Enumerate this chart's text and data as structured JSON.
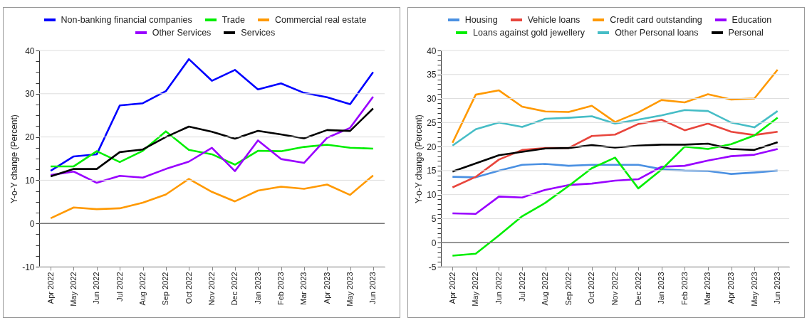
{
  "chart_data": [
    {
      "type": "line",
      "ylabel": "Y-o-Y change (Percent)",
      "legend": "top",
      "grid": "y",
      "categories": [
        "Apr 2022",
        "May 2022",
        "Jun 2022",
        "Jul 2022",
        "Aug 2022",
        "Sep 2022",
        "Oct 2022",
        "Nov 2022",
        "Dec 2022",
        "Jan 2023",
        "Feb 2023",
        "Mar 2023",
        "Apr 2023",
        "May 2023",
        "Jun 2023"
      ],
      "ylim": [
        -10,
        40
      ],
      "yticks": [
        -10,
        {
          "value": -7.5,
          "label": null
        },
        {
          "value": -5,
          "label": null
        },
        {
          "value": -2.5,
          "label": null
        },
        0,
        {
          "value": 2.5,
          "label": null
        },
        {
          "value": 5,
          "label": null
        },
        {
          "value": 7.5,
          "label": null
        },
        10,
        {
          "value": 12.5,
          "label": null
        },
        {
          "value": 15,
          "label": null
        },
        {
          "value": 17.5,
          "label": null
        },
        20,
        {
          "value": 22.5,
          "label": null
        },
        {
          "value": 25,
          "label": null
        },
        {
          "value": 27.5,
          "label": null
        },
        30,
        {
          "value": 32.5,
          "label": null
        },
        {
          "value": 35,
          "label": null
        },
        {
          "value": 37.5,
          "label": null
        },
        40
      ],
      "ref_lines": [
        {
          "axis": "y",
          "value": 0,
          "color": "#777777"
        }
      ],
      "series": [
        {
          "name": "Non-banking financial companies",
          "color": "#0000ff",
          "values": [
            12.2,
            15.5,
            16,
            27.3,
            27.8,
            30.6,
            38,
            33,
            35.5,
            31,
            32.4,
            30.2,
            29.2,
            27.6,
            35
          ]
        },
        {
          "name": "Trade",
          "color": "#00ee00",
          "values": [
            13.2,
            13.2,
            16.7,
            14.2,
            16.8,
            21.3,
            17,
            16,
            13.6,
            16.8,
            16.7,
            17.7,
            18.2,
            17.5,
            17.3
          ]
        },
        {
          "name": "Commercial real estate",
          "color": "#ff9900",
          "values": [
            1.2,
            3.7,
            3.3,
            3.5,
            4.8,
            6.7,
            10.3,
            7.3,
            5.1,
            7.6,
            8.5,
            8.0,
            9.0,
            6.6,
            11.1
          ]
        },
        {
          "name": "Other Services",
          "color": "#9900ff",
          "values": [
            11.2,
            12.0,
            9.4,
            11.0,
            10.6,
            12.6,
            14.3,
            17.5,
            12.1,
            19.2,
            14.9,
            14.0,
            19.8,
            22.1,
            29.3
          ]
        },
        {
          "name": "Services",
          "color": "#000000",
          "values": [
            10.9,
            12.6,
            12.6,
            16.5,
            17.1,
            20,
            22.4,
            21.2,
            19.6,
            21.4,
            20.6,
            19.7,
            21.6,
            21.4,
            26.6
          ]
        }
      ]
    },
    {
      "type": "line",
      "ylabel": "Y-o-Y change (Percent)",
      "legend": "top",
      "grid": "y",
      "categories": [
        "Apr 2022",
        "May 2022",
        "Jun 2022",
        "Jul 2022",
        "Aug 2022",
        "Sep 2022",
        "Oct 2022",
        "Nov 2022",
        "Dec 2022",
        "Jan 2023",
        "Feb 2023",
        "Mar 2023",
        "Apr 2023",
        "May 2023",
        "Jun 2023"
      ],
      "ylim": [
        -5,
        40
      ],
      "yticks": [
        -5,
        {
          "value": -4,
          "label": null
        },
        {
          "value": -3,
          "label": null
        },
        {
          "value": -2,
          "label": null
        },
        {
          "value": -1,
          "label": null
        },
        0,
        {
          "value": 1,
          "label": null
        },
        {
          "value": 2,
          "label": null
        },
        {
          "value": 3,
          "label": null
        },
        {
          "value": 4,
          "label": null
        },
        5,
        {
          "value": 6,
          "label": null
        },
        {
          "value": 7,
          "label": null
        },
        {
          "value": 8,
          "label": null
        },
        {
          "value": 9,
          "label": null
        },
        10,
        {
          "value": 11,
          "label": null
        },
        {
          "value": 12,
          "label": null
        },
        {
          "value": 13,
          "label": null
        },
        {
          "value": 14,
          "label": null
        },
        15,
        {
          "value": 16,
          "label": null
        },
        {
          "value": 17,
          "label": null
        },
        {
          "value": 18,
          "label": null
        },
        {
          "value": 19,
          "label": null
        },
        20,
        {
          "value": 21,
          "label": null
        },
        {
          "value": 22,
          "label": null
        },
        {
          "value": 23,
          "label": null
        },
        {
          "value": 24,
          "label": null
        },
        25,
        {
          "value": 26,
          "label": null
        },
        {
          "value": 27,
          "label": null
        },
        {
          "value": 28,
          "label": null
        },
        {
          "value": 29,
          "label": null
        },
        30,
        {
          "value": 31,
          "label": null
        },
        {
          "value": 32,
          "label": null
        },
        {
          "value": 33,
          "label": null
        },
        {
          "value": 34,
          "label": null
        },
        35,
        {
          "value": 36,
          "label": null
        },
        {
          "value": 37,
          "label": null
        },
        {
          "value": 38,
          "label": null
        },
        {
          "value": 39,
          "label": null
        },
        40
      ],
      "ref_lines": [
        {
          "axis": "y",
          "value": 0,
          "color": "#777777"
        }
      ],
      "series": [
        {
          "name": "Housing",
          "color": "#4a90e2",
          "values": [
            13.7,
            13.6,
            15,
            16.2,
            16.4,
            16,
            16.2,
            16.2,
            16.2,
            15.3,
            15.0,
            14.9,
            14.3,
            14.6,
            15.0
          ]
        },
        {
          "name": "Vehicle loans",
          "color": "#e8453c",
          "values": [
            11.5,
            13.7,
            17.3,
            19.3,
            19.7,
            19.7,
            22.2,
            22.5,
            24.7,
            25.6,
            23.4,
            24.8,
            23.1,
            22.4,
            23.1
          ]
        },
        {
          "name": "Credit card outstanding",
          "color": "#ff9900",
          "values": [
            20.8,
            30.8,
            31.7,
            28.3,
            27.3,
            27.2,
            28.5,
            25.1,
            27.1,
            29.7,
            29.2,
            30.9,
            29.8,
            30,
            36
          ]
        },
        {
          "name": "Education",
          "color": "#9900ff",
          "values": [
            6.1,
            6.0,
            9.6,
            9.4,
            11.0,
            12.0,
            12.3,
            12.9,
            13.2,
            15.8,
            16,
            17.1,
            18.0,
            18.3,
            19.5
          ]
        },
        {
          "name": "Loans against gold jewellery",
          "color": "#00ee00",
          "values": [
            -2.7,
            -2.3,
            1.5,
            5.5,
            8.3,
            11.8,
            15.5,
            17.7,
            11.3,
            15.2,
            20,
            19.5,
            20.5,
            22.3,
            26
          ]
        },
        {
          "name": "Other Personal loans",
          "color": "#46bdc6",
          "values": [
            20.2,
            23.6,
            25,
            24.1,
            25.8,
            26,
            26.3,
            24.8,
            25.6,
            26.5,
            27.6,
            27.4,
            25,
            24,
            27.4
          ]
        },
        {
          "name": "Personal",
          "color": "#000000",
          "values": [
            14.8,
            16.5,
            18.2,
            18.9,
            19.6,
            19.7,
            20.3,
            19.8,
            20.2,
            20.4,
            20.4,
            20.6,
            19.5,
            19.3,
            20.9
          ]
        }
      ]
    }
  ]
}
